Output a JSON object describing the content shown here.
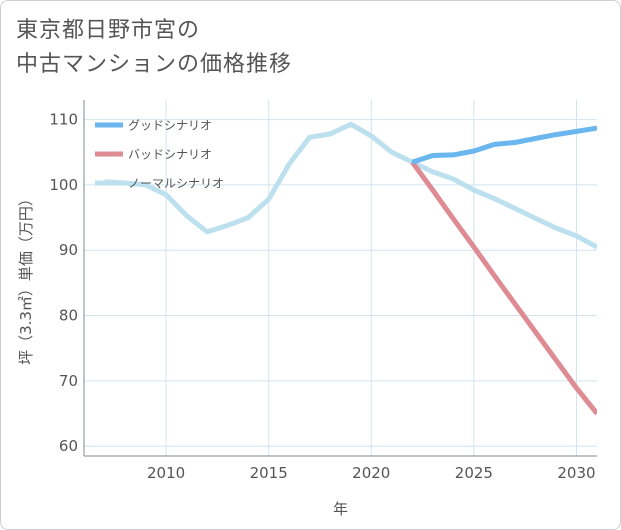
{
  "header": {
    "title_line1": "東京都日野市宮の",
    "title_line2": "中古マンションの価格推移"
  },
  "chart_data": {
    "type": "line",
    "xlabel": "年",
    "ylabel": "坪（3.3㎡）単価（万円）",
    "xlim": [
      2006,
      2031
    ],
    "ylim": [
      58.5,
      113
    ],
    "xticks": [
      2010,
      2015,
      2020,
      2025,
      2030
    ],
    "yticks": [
      60,
      70,
      80,
      90,
      100,
      110
    ],
    "grid": true,
    "legend_position": "top-left",
    "series": [
      {
        "name": "グッドシナリオ",
        "color": "#6ab6ef",
        "x": [
          2022,
          2023,
          2024,
          2025,
          2026,
          2027,
          2028,
          2029,
          2030,
          2031
        ],
        "y": [
          103.5,
          104.5,
          104.6,
          105.2,
          106.2,
          106.5,
          107.1,
          107.7,
          108.2,
          108.7
        ]
      },
      {
        "name": "バッドシナリオ",
        "color": "#de8b93",
        "x": [
          2022,
          2023,
          2024,
          2025,
          2026,
          2027,
          2028,
          2029,
          2030,
          2031
        ],
        "y": [
          103.5,
          99.2,
          94.8,
          90.5,
          86.1,
          81.8,
          77.5,
          73.2,
          68.9,
          65.0
        ]
      },
      {
        "name": "ノーマルシナリオ",
        "color": "#bde0ee",
        "x": [
          2007,
          2008,
          2009,
          2010,
          2011,
          2012,
          2013,
          2014,
          2015,
          2016,
          2017,
          2018,
          2019,
          2020,
          2021,
          2022,
          2023,
          2024,
          2025,
          2026,
          2027,
          2028,
          2029,
          2030,
          2031
        ],
        "y": [
          100.5,
          100.3,
          100.0,
          98.5,
          95.3,
          92.8,
          93.8,
          95.0,
          97.8,
          103.2,
          107.3,
          107.8,
          109.3,
          107.5,
          105.0,
          103.5,
          102.0,
          100.9,
          99.2,
          97.9,
          96.4,
          94.9,
          93.4,
          92.2,
          90.5
        ]
      }
    ]
  }
}
